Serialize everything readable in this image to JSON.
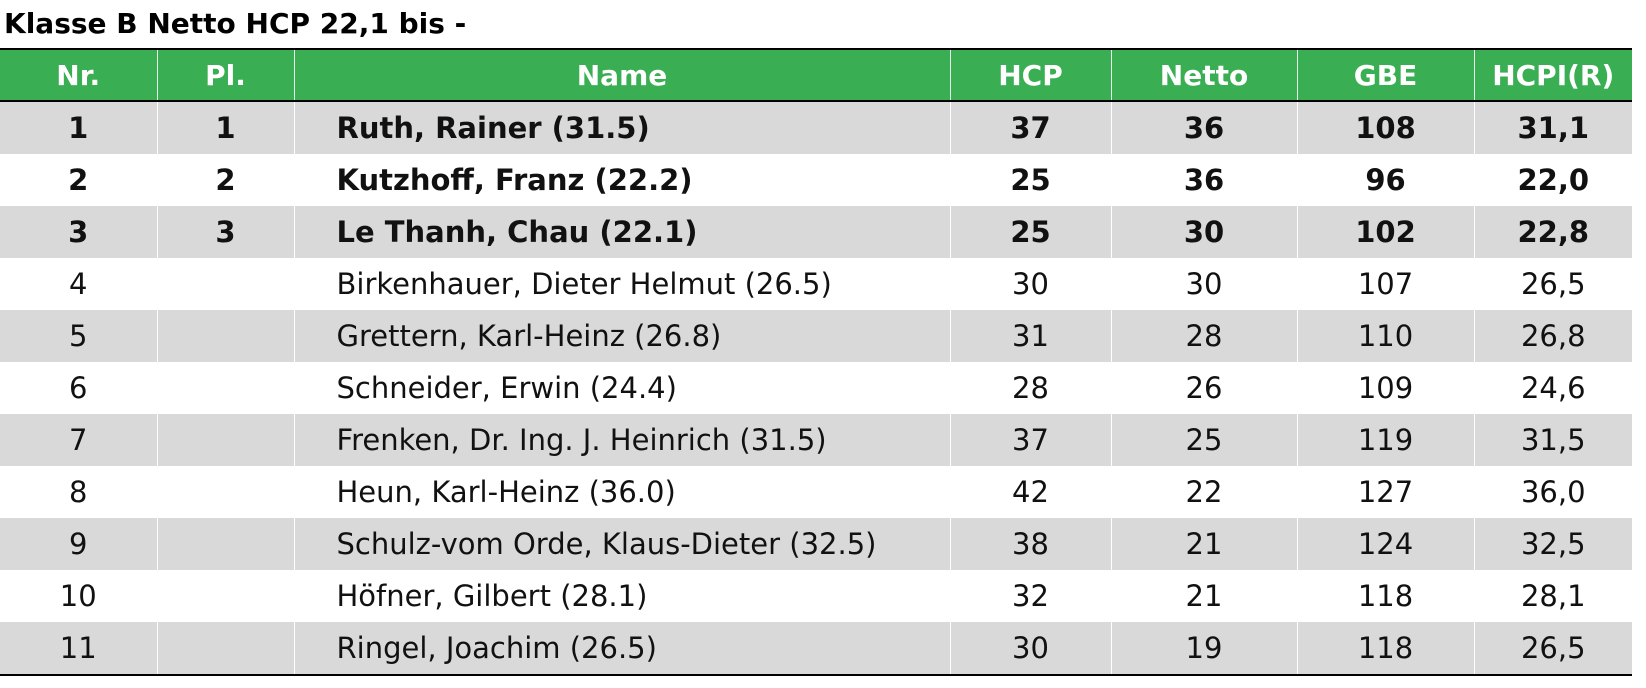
{
  "header": {
    "title": "Klasse B Netto HCP 22,1 bis -"
  },
  "table": {
    "columns": [
      "Nr.",
      "Pl.",
      "Name",
      "HCP",
      "Netto",
      "GBE",
      "HCPI(R)"
    ],
    "rows": [
      [
        "1",
        "1",
        "Ruth, Rainer (31.5)",
        "37",
        "36",
        "108",
        "31,1"
      ],
      [
        "2",
        "2",
        "Kutzhoff, Franz (22.2)",
        "25",
        "36",
        "96",
        "22,0"
      ],
      [
        "3",
        "3",
        "Le Thanh, Chau (22.1)",
        "25",
        "30",
        "102",
        "22,8"
      ],
      [
        "4",
        null,
        "Birkenhauer, Dieter Helmut (26.5)",
        "30",
        "30",
        "107",
        "26,5"
      ],
      [
        "5",
        null,
        "Grettern, Karl-Heinz (26.8)",
        "31",
        "28",
        "110",
        "26,8"
      ],
      [
        "6",
        null,
        "Schneider, Erwin (24.4)",
        "28",
        "26",
        "109",
        "24,6"
      ],
      [
        "7",
        null,
        "Frenken, Dr. Ing. J. Heinrich (31.5)",
        "37",
        "25",
        "119",
        "31,5"
      ],
      [
        "8",
        null,
        "Heun, Karl-Heinz (36.0)",
        "42",
        "22",
        "127",
        "36,0"
      ],
      [
        "9",
        null,
        "Schulz-vom Orde, Klaus-Dieter (32.5)",
        "38",
        "21",
        "124",
        "32,5"
      ],
      [
        "10",
        null,
        "Höfner, Gilbert (28.1)",
        "32",
        "21",
        "118",
        "28,1"
      ],
      [
        "11",
        null,
        "Ringel, Joachim (26.5)",
        "30",
        "19",
        "118",
        "26,5"
      ]
    ]
  }
}
